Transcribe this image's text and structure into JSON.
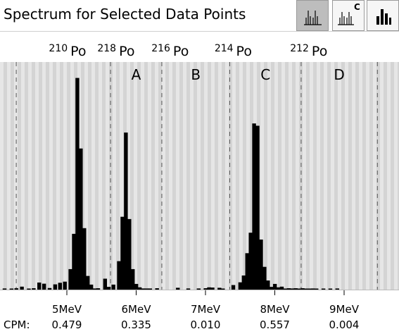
{
  "header": {
    "title": "Spectrum for Selected Data Points",
    "buttons": [
      {
        "name": "peaks-view",
        "icon": "spectrum-peaks-icon",
        "active": true,
        "sup": ""
      },
      {
        "name": "peaks-c-view",
        "icon": "spectrum-peaks-c-icon",
        "active": false,
        "sup": "C"
      },
      {
        "name": "histogram-view",
        "icon": "bar-chart-icon",
        "active": false,
        "sup": ""
      }
    ]
  },
  "colors": {
    "stripe_light": "#e6e6e6",
    "stripe_dark": "#d4d4d4",
    "bar": "#000000",
    "divider": "#555555"
  },
  "chart_data": {
    "type": "bar",
    "title": "Spectrum for Selected Data Points",
    "x_unit": "MeV",
    "xlim": [
      3.4,
      10.1
    ],
    "ylim": [
      0,
      1
    ],
    "x_ticks": [
      {
        "value": 5,
        "label": "5MeV"
      },
      {
        "value": 6,
        "label": "6MeV"
      },
      {
        "value": 7,
        "label": "7MeV"
      },
      {
        "value": 8,
        "label": "8MeV"
      },
      {
        "value": 9,
        "label": "9MeV"
      }
    ],
    "isotopes": [
      {
        "mass": "210",
        "symbol": "Po",
        "energy": 5.3
      },
      {
        "mass": "218",
        "symbol": "Po",
        "energy": 6.0
      },
      {
        "mass": "216",
        "symbol": "Po",
        "energy": 6.78
      },
      {
        "mass": "214",
        "symbol": "Po",
        "energy": 7.69
      },
      {
        "mass": "212",
        "symbol": "Po",
        "energy": 8.78
      }
    ],
    "windows": [
      {
        "label": "A",
        "start": 5.63,
        "end": 6.37,
        "cpm_label": "CPM:",
        "cpm": "0.335"
      },
      {
        "label": "B",
        "start": 6.37,
        "end": 7.35,
        "cpm_label": "",
        "cpm": "0.010"
      },
      {
        "label": "C",
        "start": 7.35,
        "end": 8.38,
        "cpm_label": "",
        "cpm": "0.557"
      },
      {
        "label": "D",
        "start": 8.38,
        "end": 9.48,
        "cpm_label": "",
        "cpm": "0.004"
      }
    ],
    "cpm_first": {
      "label": "CPM:",
      "value": "0.479"
    },
    "bins_x": [
      3.5,
      3.58,
      3.65,
      3.72,
      3.8,
      3.87,
      3.94,
      4.0,
      4.1,
      4.2,
      4.27,
      4.35,
      4.45,
      4.52,
      4.6,
      4.67,
      4.75,
      4.83,
      4.9,
      4.97,
      5.05,
      5.1,
      5.15,
      5.2,
      5.25,
      5.3,
      5.35,
      5.4,
      5.45,
      5.55,
      5.6,
      5.67,
      5.75,
      5.8,
      5.85,
      5.9,
      5.95,
      6.0,
      6.05,
      6.1,
      6.15,
      6.2,
      6.3,
      6.6,
      6.75,
      6.9,
      7.0,
      7.05,
      7.1,
      7.2,
      7.25,
      7.4,
      7.5,
      7.55,
      7.6,
      7.65,
      7.7,
      7.75,
      7.8,
      7.85,
      7.9,
      7.95,
      8.0,
      8.05,
      8.1,
      8.15,
      8.2,
      8.25,
      8.3,
      8.35,
      8.4,
      8.45,
      8.5,
      8.55,
      8.6,
      8.7,
      8.8,
      8.9
    ],
    "bins_y": [
      0.005,
      0.006,
      0.004,
      0.006,
      0.005,
      0.004,
      0.007,
      0.004,
      0.005,
      0.004,
      0.006,
      0.013,
      0.004,
      0.006,
      0.031,
      0.026,
      0.007,
      0.023,
      0.03,
      0.035,
      0.09,
      0.245,
      0.93,
      0.62,
      0.27,
      0.06,
      0.022,
      0.005,
      0.006,
      0.048,
      0.012,
      0.022,
      0.125,
      0.32,
      0.69,
      0.31,
      0.09,
      0.025,
      0.01,
      0.005,
      0.005,
      0.005,
      0.006,
      0.008,
      0.005,
      0.005,
      0.006,
      0.01,
      0.009,
      0.008,
      0.004,
      0.02,
      0.032,
      0.062,
      0.16,
      0.25,
      0.73,
      0.72,
      0.22,
      0.1,
      0.04,
      0.012,
      0.025,
      0.01,
      0.013,
      0.004,
      0.006,
      0.005,
      0.006,
      0.004,
      0.006,
      0.003,
      0.004,
      0.005,
      0.004,
      0.004,
      0.004,
      0.005
    ],
    "bin_width": 0.052
  }
}
